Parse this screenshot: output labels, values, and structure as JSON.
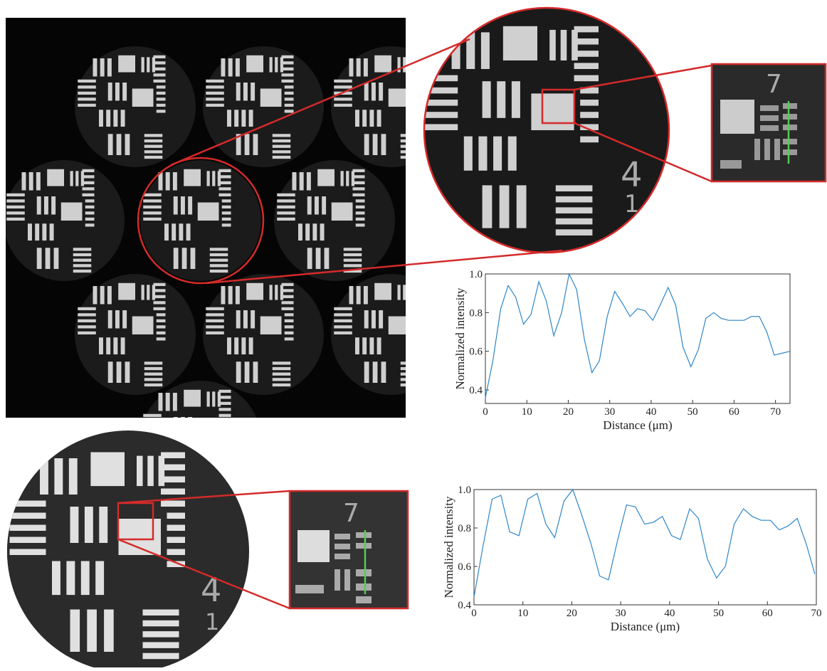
{
  "chart_data": [
    {
      "type": "line",
      "ylabel": "Normalized intensity",
      "xlabel": "Distance (μm)",
      "x": [
        0,
        1.8,
        3.7,
        5.5,
        7.3,
        9.2,
        11,
        12.9,
        14.7,
        16.5,
        18.4,
        20.2,
        22,
        23.9,
        25.7,
        27.5,
        29.4,
        31.2,
        33,
        34.9,
        36.7,
        38.5,
        40.4,
        42.2,
        44.1,
        45.9,
        47.7,
        49.6,
        51.4,
        53.2,
        55.1,
        56.9,
        58.7,
        60.6,
        62.4,
        64.2,
        66.1,
        67.9,
        69.7,
        71.6,
        73.5
      ],
      "series": [
        {
          "color": "#2f86c9",
          "values": [
            0.36,
            0.55,
            0.82,
            0.94,
            0.88,
            0.74,
            0.79,
            0.96,
            0.86,
            0.68,
            0.8,
            1.0,
            0.92,
            0.66,
            0.49,
            0.55,
            0.78,
            0.91,
            0.85,
            0.78,
            0.82,
            0.81,
            0.76,
            0.84,
            0.93,
            0.84,
            0.62,
            0.52,
            0.61,
            0.77,
            0.8,
            0.77,
            0.76,
            0.76,
            0.76,
            0.78,
            0.78,
            0.7,
            0.58,
            0.59,
            0.6
          ]
        }
      ],
      "xlim": [
        0,
        73.5
      ],
      "ylim": [
        0.33,
        1.0
      ],
      "xticks": [
        0,
        10,
        20,
        30,
        40,
        50,
        60,
        70
      ],
      "yticks": [
        0.4,
        0.6,
        0.8,
        {
          "value": 1,
          "label": "1.0"
        }
      ]
    },
    {
      "type": "line",
      "ylabel": "Normalized intensity",
      "xlabel": "Distance (μm)",
      "x": [
        0,
        1.8,
        3.7,
        5.5,
        7.3,
        9.2,
        11,
        12.9,
        14.7,
        16.5,
        18.4,
        20.2,
        22,
        23.9,
        25.7,
        27.5,
        29.4,
        31.2,
        33,
        34.9,
        36.7,
        38.5,
        40.4,
        42.2,
        44.1,
        45.9,
        47.7,
        49.6,
        51.4,
        53.2,
        55.1,
        56.9,
        58.7,
        60.6,
        62.4,
        64.2,
        66.1,
        67.9,
        69.7
      ],
      "series": [
        {
          "color": "#2f86c9",
          "values": [
            0.44,
            0.7,
            0.95,
            0.97,
            0.78,
            0.76,
            0.95,
            0.98,
            0.82,
            0.75,
            0.94,
            1.0,
            0.87,
            0.72,
            0.55,
            0.53,
            0.74,
            0.92,
            0.91,
            0.82,
            0.83,
            0.86,
            0.76,
            0.74,
            0.9,
            0.85,
            0.64,
            0.54,
            0.6,
            0.82,
            0.9,
            0.86,
            0.84,
            0.84,
            0.79,
            0.81,
            0.85,
            0.72,
            0.56
          ]
        }
      ],
      "xlim": [
        0,
        70
      ],
      "ylim": [
        0.4,
        1.0
      ],
      "xticks": [
        0,
        10,
        20,
        30,
        40,
        50,
        60,
        70
      ],
      "yticks": [
        0.4,
        0.6,
        0.8,
        {
          "value": 1,
          "label": "1.0"
        }
      ]
    }
  ],
  "image_labels": {
    "zoom_group": "4",
    "zoom_element": "1",
    "inset_top": "7",
    "inset_bottom": "7",
    "bottom_group": "4",
    "bottom_element": "1"
  }
}
